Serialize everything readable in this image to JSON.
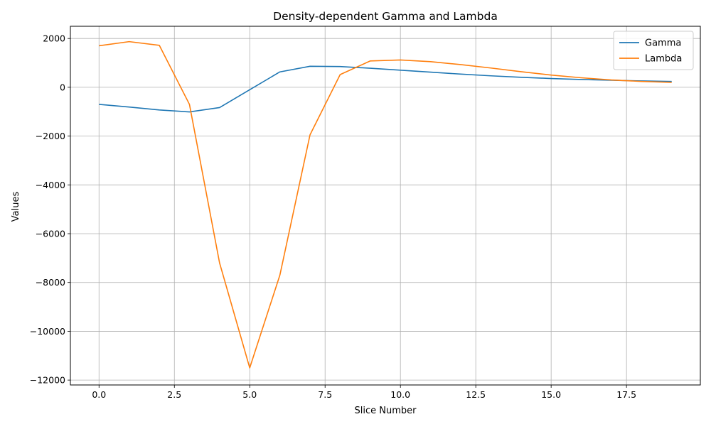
{
  "chart_data": {
    "type": "line",
    "title": "Density-dependent Gamma and Lambda",
    "xlabel": "Slice Number",
    "ylabel": "Values",
    "xlim": [
      -0.95,
      19.95
    ],
    "ylim": [
      -12200,
      2500
    ],
    "xticks": [
      0.0,
      2.5,
      5.0,
      7.5,
      10.0,
      12.5,
      15.0,
      17.5
    ],
    "xtick_labels": [
      "0.0",
      "2.5",
      "5.0",
      "7.5",
      "10.0",
      "12.5",
      "15.0",
      "17.5"
    ],
    "yticks": [
      2000,
      0,
      -2000,
      -4000,
      -6000,
      -8000,
      -10000,
      -12000
    ],
    "ytick_labels": [
      "2000",
      "0",
      "−2000",
      "−4000",
      "−6000",
      "−8000",
      "−10000",
      "−12000"
    ],
    "grid": true,
    "legend_position": "top-right",
    "x": [
      0,
      1,
      2,
      3,
      4,
      5,
      6,
      7,
      8,
      9,
      10,
      11,
      12,
      13,
      14,
      15,
      16,
      17,
      18,
      19
    ],
    "series": [
      {
        "name": "Gamma",
        "color": "#1f77b4",
        "values": [
          -700,
          -810,
          -930,
          -1010,
          -830,
          -100,
          630,
          860,
          850,
          780,
          700,
          620,
          540,
          470,
          410,
          360,
          320,
          290,
          260,
          240
        ]
      },
      {
        "name": "Lambda",
        "color": "#ff7f0e",
        "values": [
          1700,
          1870,
          1720,
          -700,
          -7200,
          -11500,
          -7700,
          -1950,
          520,
          1080,
          1120,
          1050,
          930,
          790,
          640,
          500,
          390,
          300,
          240,
          200
        ]
      }
    ]
  }
}
